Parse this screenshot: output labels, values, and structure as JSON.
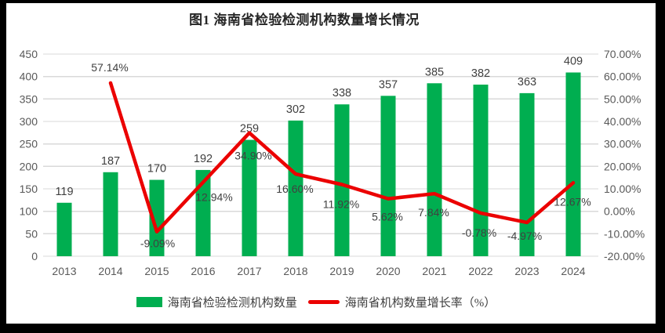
{
  "chart_data": {
    "type": "bar+line",
    "title": "图1 海南省检验检测机构数量增长情况",
    "categories": [
      "2013",
      "2014",
      "2015",
      "2016",
      "2017",
      "2018",
      "2019",
      "2020",
      "2021",
      "2022",
      "2023",
      "2024"
    ],
    "series": [
      {
        "name": "海南省检验检测机构数量",
        "type": "bar",
        "axis": "left",
        "color": "#00AE50",
        "values": [
          119,
          187,
          170,
          192,
          259,
          302,
          338,
          357,
          385,
          382,
          363,
          409
        ]
      },
      {
        "name": "海南省机构数量增长率（%）",
        "type": "line",
        "axis": "right",
        "color": "#EB0000",
        "values": [
          null,
          57.14,
          -9.09,
          12.94,
          34.9,
          16.6,
          11.92,
          5.62,
          7.84,
          -0.78,
          -4.97,
          12.67
        ],
        "point_labels": [
          "",
          "57.14%",
          "-9.09%",
          "12.94%",
          "34.90%",
          "16.60%",
          "11.92%",
          "5.62%",
          "7.84%",
          "-0.78%",
          "-4.97%",
          "12.67%"
        ]
      }
    ],
    "left_axis": {
      "min": 0,
      "max": 450,
      "step": 50,
      "tick_labels": [
        "450",
        "400",
        "350",
        "300",
        "250",
        "200",
        "150",
        "100",
        "50",
        "0"
      ]
    },
    "right_axis": {
      "min": -20,
      "max": 70,
      "step": 10,
      "tick_labels": [
        "70.00%",
        "60.00%",
        "50.00%",
        "40.00%",
        "30.00%",
        "20.00%",
        "10.00%",
        "0.00%",
        "-10.00%",
        "-20.00%"
      ]
    },
    "grid": true,
    "legend_position": "bottom",
    "colors": {
      "frame": "#000000",
      "background": "#FFFFFF",
      "grid": "#D9D9D9",
      "axis_text": "#595959",
      "label_text": "#404040",
      "title_text": "#262626"
    }
  }
}
